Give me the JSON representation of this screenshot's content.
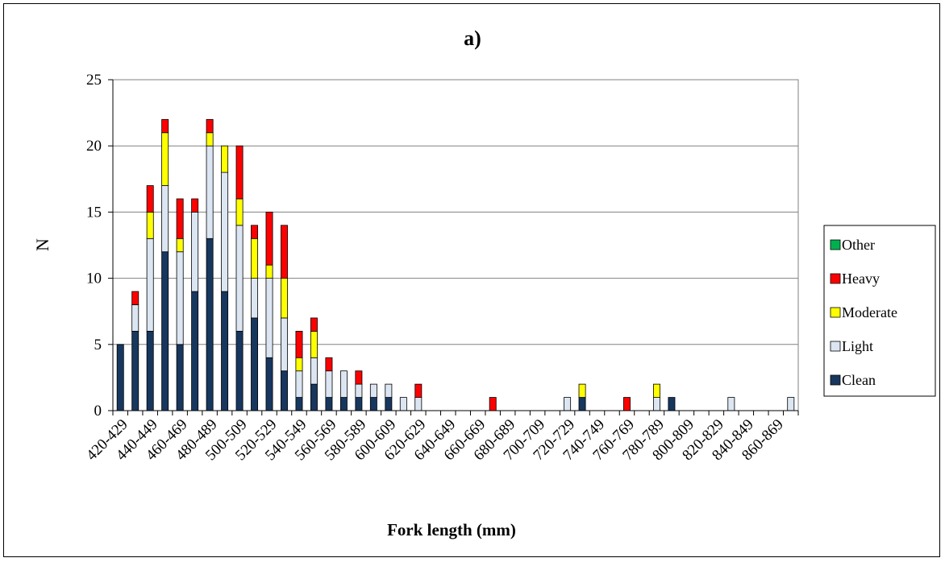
{
  "chart_data": {
    "type": "bar",
    "stacked": true,
    "title": "a)",
    "xlabel": "Fork length (mm)",
    "ylabel": "N",
    "ylim": [
      0,
      25
    ],
    "yticks": [
      0,
      5,
      10,
      15,
      20,
      25
    ],
    "grid": true,
    "legend_position": "right",
    "tick_labels": [
      "420-429",
      "440-449",
      "460-469",
      "480-489",
      "500-509",
      "520-529",
      "540-549",
      "560-569",
      "580-589",
      "600-609",
      "620-629",
      "640-649",
      "660-669",
      "680-689",
      "700-709",
      "720-729",
      "740-749",
      "760-769",
      "780-789",
      "800-809",
      "820-829",
      "840-849",
      "860-869"
    ],
    "categories": [
      "420-429",
      "430-439",
      "440-449",
      "450-459",
      "460-469",
      "470-479",
      "480-489",
      "490-499",
      "500-509",
      "510-519",
      "520-529",
      "530-539",
      "540-549",
      "550-559",
      "560-569",
      "570-579",
      "580-589",
      "590-599",
      "600-609",
      "610-619",
      "620-629",
      "630-639",
      "640-649",
      "650-659",
      "660-669",
      "670-679",
      "680-689",
      "690-699",
      "700-709",
      "710-719",
      "720-729",
      "730-739",
      "740-749",
      "750-759",
      "760-769",
      "770-779",
      "780-789",
      "790-799",
      "800-809",
      "810-819",
      "820-829",
      "830-839",
      "840-849",
      "850-859",
      "860-869",
      "870-879"
    ],
    "series": [
      {
        "name": "Clean",
        "color": "#17375e",
        "values": [
          5,
          6,
          6,
          12,
          5,
          9,
          13,
          9,
          6,
          7,
          4,
          3,
          1,
          2,
          1,
          1,
          1,
          1,
          1,
          0,
          0,
          0,
          0,
          0,
          0,
          0,
          0,
          0,
          0,
          0,
          0,
          1,
          0,
          0,
          0,
          0,
          0,
          1,
          0,
          0,
          0,
          0,
          0,
          0,
          0,
          0
        ]
      },
      {
        "name": "Light",
        "color": "#dce6f2",
        "values": [
          0,
          2,
          7,
          5,
          7,
          6,
          7,
          9,
          8,
          3,
          6,
          4,
          2,
          2,
          2,
          2,
          1,
          1,
          1,
          1,
          1,
          0,
          0,
          0,
          0,
          0,
          0,
          0,
          0,
          0,
          1,
          0,
          0,
          0,
          0,
          0,
          1,
          0,
          0,
          0,
          0,
          1,
          0,
          0,
          0,
          1
        ]
      },
      {
        "name": "Moderate",
        "color": "#ffff00",
        "values": [
          0,
          0,
          2,
          4,
          1,
          0,
          1,
          2,
          2,
          3,
          1,
          3,
          1,
          2,
          0,
          0,
          0,
          0,
          0,
          0,
          0,
          0,
          0,
          0,
          0,
          0,
          0,
          0,
          0,
          0,
          0,
          1,
          0,
          0,
          0,
          0,
          1,
          0,
          0,
          0,
          0,
          0,
          0,
          0,
          0,
          0
        ]
      },
      {
        "name": "Heavy",
        "color": "#ff0000",
        "values": [
          0,
          1,
          2,
          1,
          3,
          1,
          1,
          0,
          4,
          1,
          4,
          4,
          2,
          1,
          1,
          0,
          1,
          0,
          0,
          0,
          1,
          0,
          0,
          0,
          0,
          1,
          0,
          0,
          0,
          0,
          0,
          0,
          0,
          0,
          1,
          0,
          0,
          0,
          0,
          0,
          0,
          0,
          0,
          0,
          0,
          0
        ]
      },
      {
        "name": "Other",
        "color": "#00b050",
        "values": [
          0,
          0,
          0,
          0,
          0,
          0,
          0,
          0,
          0,
          0,
          0,
          0,
          0,
          0,
          0,
          0,
          0,
          0,
          0,
          0,
          0,
          0,
          0,
          0,
          0,
          0,
          0,
          0,
          0,
          0,
          0,
          0,
          0,
          0,
          0,
          0,
          0,
          0,
          0,
          0,
          0,
          0,
          0,
          0,
          0,
          0
        ]
      }
    ],
    "legend_order": [
      "Other",
      "Heavy",
      "Moderate",
      "Light",
      "Clean"
    ]
  }
}
